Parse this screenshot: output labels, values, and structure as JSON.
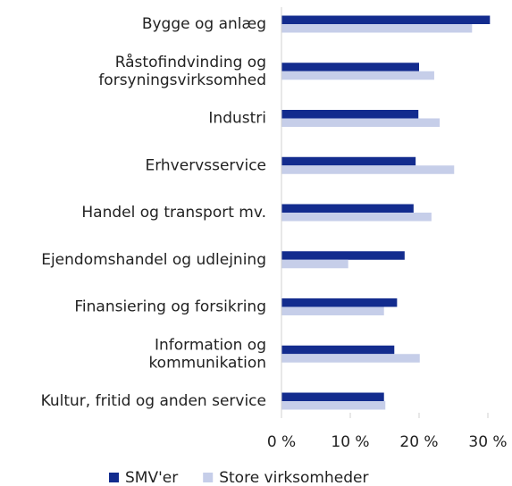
{
  "chart_data": {
    "type": "barh",
    "categories": [
      "Bygge og anlæg",
      "Råstofindvinding og\nforsyningsvirksomhed",
      "Industri",
      "Erhvervsservice",
      "Handel og transport mv.",
      "Ejendomshandel og udlejning",
      "Finansiering og forsikring",
      "Information og\nkommunikation",
      "Kultur, fritid og anden service"
    ],
    "series": [
      {
        "name": "SMV'er",
        "color": "#132c8e",
        "values": [
          30.3,
          20.0,
          19.9,
          19.5,
          19.2,
          17.9,
          16.8,
          16.4,
          14.9
        ]
      },
      {
        "name": "Store virksomheder",
        "color": "#c6cee9",
        "values": [
          27.7,
          22.2,
          23.0,
          25.1,
          21.8,
          9.7,
          14.9,
          20.1,
          15.1
        ]
      }
    ],
    "xlim": [
      0,
      30
    ],
    "xticks": [
      {
        "value": 0,
        "label": "0 %"
      },
      {
        "value": 10,
        "label": "10 %"
      },
      {
        "value": 20,
        "label": "20 %"
      },
      {
        "value": 30,
        "label": "30 %"
      }
    ],
    "legend": "bottom"
  }
}
